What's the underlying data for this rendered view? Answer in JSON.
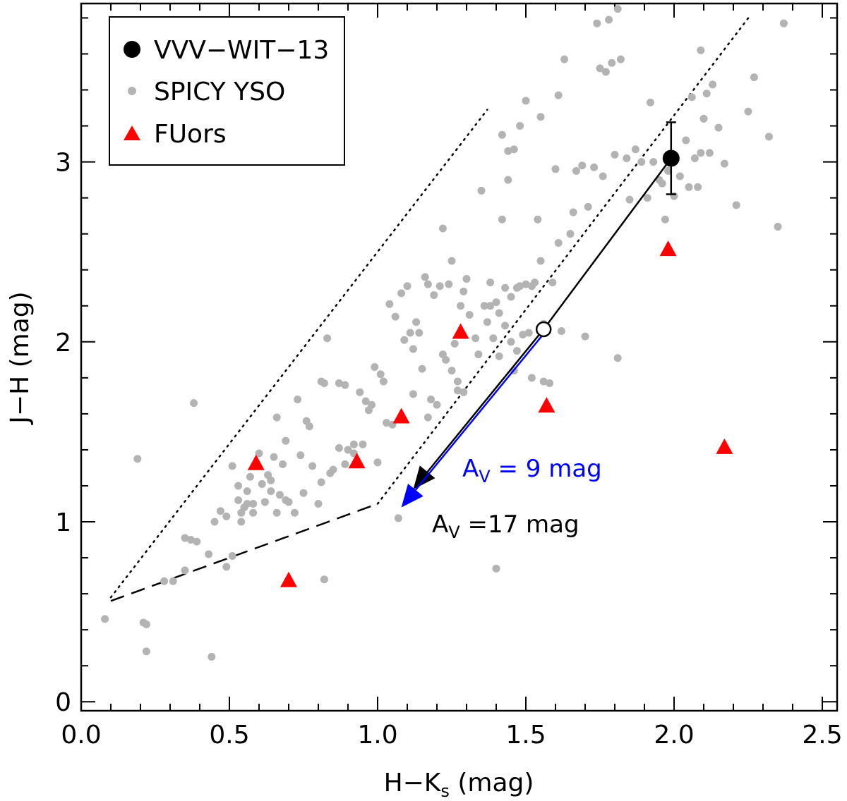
{
  "chart_data": {
    "type": "scatter",
    "xlabel": {
      "main": "H−K",
      "sub": "s",
      "unit": " (mag)"
    },
    "ylabel": "J−H  (mag)",
    "xlim": [
      0.0,
      2.55
    ],
    "ylim": [
      -0.05,
      3.88
    ],
    "xticks": [
      {
        "v": 0.0,
        "label": "0.0"
      },
      {
        "v": 0.5,
        "label": "0.5"
      },
      {
        "v": 1.0,
        "label": "1.0"
      },
      {
        "v": 1.5,
        "label": "1.5"
      },
      {
        "v": 2.0,
        "label": "2.0"
      },
      {
        "v": 2.5,
        "label": "2.5"
      }
    ],
    "yticks": [
      {
        "v": 0,
        "label": "0"
      },
      {
        "v": 1,
        "label": "1"
      },
      {
        "v": 2,
        "label": "2"
      },
      {
        "v": 3,
        "label": "3"
      }
    ],
    "xminor_step": 0.1,
    "yminor_step": 0.2,
    "legend": {
      "position": "top-left",
      "entries": [
        {
          "label": "VVV−WIT−13",
          "marker": "circle-large",
          "color": "#000000"
        },
        {
          "label": "SPICY YSO",
          "marker": "circle-small",
          "color": "#b3b3b3"
        },
        {
          "label": "FUors",
          "marker": "triangle",
          "color": "#ff0000"
        }
      ]
    },
    "series": [
      {
        "name": "SPICY YSO",
        "color": "#b3b3b3",
        "points": [
          [
            0.08,
            0.46
          ],
          [
            0.19,
            1.35
          ],
          [
            0.21,
            0.44
          ],
          [
            0.22,
            0.43
          ],
          [
            0.22,
            0.28
          ],
          [
            0.28,
            0.67
          ],
          [
            0.31,
            0.67
          ],
          [
            0.38,
            1.66
          ],
          [
            0.35,
            0.91
          ],
          [
            0.37,
            0.9
          ],
          [
            0.39,
            0.89
          ],
          [
            0.35,
            0.73
          ],
          [
            0.43,
            0.82
          ],
          [
            0.44,
            0.25
          ],
          [
            0.45,
            1.0
          ],
          [
            0.47,
            1.06
          ],
          [
            0.49,
            1.03
          ],
          [
            0.49,
            0.75
          ],
          [
            0.51,
            0.81
          ],
          [
            0.51,
            1.31
          ],
          [
            0.53,
            1.2
          ],
          [
            0.53,
            1.12
          ],
          [
            0.54,
            1.05
          ],
          [
            0.54,
            1.0
          ],
          [
            0.55,
            1.08
          ],
          [
            0.56,
            1.1
          ],
          [
            0.56,
            1.17
          ],
          [
            0.57,
            1.25
          ],
          [
            0.58,
            1.1
          ],
          [
            0.58,
            1.05
          ],
          [
            0.6,
            1.38
          ],
          [
            0.61,
            1.21
          ],
          [
            0.62,
            1.11
          ],
          [
            0.63,
            1.26
          ],
          [
            0.64,
            1.23
          ],
          [
            0.64,
            1.17
          ],
          [
            0.65,
            1.36
          ],
          [
            0.66,
            1.05
          ],
          [
            0.66,
            1.58
          ],
          [
            0.67,
            1.15
          ],
          [
            0.68,
            1.32
          ],
          [
            0.69,
            1.12
          ],
          [
            0.69,
            1.45
          ],
          [
            0.7,
            1.11
          ],
          [
            0.72,
            1.05
          ],
          [
            0.73,
            1.68
          ],
          [
            0.74,
            1.37
          ],
          [
            0.75,
            1.16
          ],
          [
            0.76,
            1.56
          ],
          [
            0.77,
            1.53
          ],
          [
            0.78,
            1.31
          ],
          [
            0.8,
            1.1
          ],
          [
            0.81,
            1.78
          ],
          [
            0.81,
            1.22
          ],
          [
            0.82,
            1.77
          ],
          [
            0.82,
            0.68
          ],
          [
            0.83,
            2.02
          ],
          [
            0.84,
            1.27
          ],
          [
            0.85,
            1.29
          ],
          [
            0.87,
            1.41
          ],
          [
            0.87,
            1.77
          ],
          [
            0.89,
            1.76
          ],
          [
            0.89,
            1.32
          ],
          [
            0.9,
            1.4
          ],
          [
            0.92,
            1.43
          ],
          [
            0.92,
            1.38
          ],
          [
            0.94,
            1.72
          ],
          [
            0.95,
            1.43
          ],
          [
            0.96,
            1.67
          ],
          [
            0.97,
            1.62
          ],
          [
            0.98,
            1.65
          ],
          [
            0.99,
            1.86
          ],
          [
            1.0,
            1.33
          ],
          [
            1.01,
            1.82
          ],
          [
            1.02,
            1.78
          ],
          [
            1.03,
            1.55
          ],
          [
            1.04,
            2.21
          ],
          [
            1.05,
            1.54
          ],
          [
            1.06,
            2.14
          ],
          [
            1.07,
            1.02
          ],
          [
            1.08,
            2.27
          ],
          [
            1.09,
            2.01
          ],
          [
            1.1,
            2.31
          ],
          [
            1.11,
            2.05
          ],
          [
            1.12,
            1.71
          ],
          [
            1.12,
            1.96
          ],
          [
            1.13,
            2.11
          ],
          [
            1.14,
            2.05
          ],
          [
            1.15,
            1.85
          ],
          [
            1.16,
            2.36
          ],
          [
            1.17,
            1.58
          ],
          [
            1.17,
            2.32
          ],
          [
            1.18,
            1.68
          ],
          [
            1.19,
            2.26
          ],
          [
            1.2,
            1.65
          ],
          [
            1.21,
            2.31
          ],
          [
            1.22,
            1.93
          ],
          [
            1.22,
            2.63
          ],
          [
            1.23,
            1.9
          ],
          [
            1.24,
            2.32
          ],
          [
            1.25,
            2.45
          ],
          [
            1.25,
            1.84
          ],
          [
            1.26,
            1.99
          ],
          [
            1.27,
            1.78
          ],
          [
            1.27,
            1.73
          ],
          [
            1.28,
            2.2
          ],
          [
            1.29,
            1.72
          ],
          [
            1.29,
            2.28
          ],
          [
            1.3,
            2.35
          ],
          [
            1.31,
            2.15
          ],
          [
            1.33,
            2.02
          ],
          [
            1.34,
            1.93
          ],
          [
            1.35,
            2.84
          ],
          [
            1.36,
            2.2
          ],
          [
            1.37,
            2.11
          ],
          [
            1.38,
            2.33
          ],
          [
            1.38,
            2.2
          ],
          [
            1.39,
            2.02
          ],
          [
            1.4,
            2.22
          ],
          [
            1.4,
            0.74
          ],
          [
            1.41,
            2.16
          ],
          [
            1.41,
            1.92
          ],
          [
            1.42,
            2.68
          ],
          [
            1.42,
            3.15
          ],
          [
            1.43,
            2.3
          ],
          [
            1.43,
            2.09
          ],
          [
            1.44,
            2.9
          ],
          [
            1.44,
            3.06
          ],
          [
            1.45,
            2.25
          ],
          [
            1.45,
            2.0
          ],
          [
            1.46,
            3.07
          ],
          [
            1.46,
            1.84
          ],
          [
            1.47,
            2.3
          ],
          [
            1.47,
            1.95
          ],
          [
            1.48,
            3.2
          ],
          [
            1.48,
            2.31
          ],
          [
            1.49,
            2.04
          ],
          [
            1.5,
            3.34
          ],
          [
            1.5,
            2.32
          ],
          [
            1.51,
            2.05
          ],
          [
            1.52,
            2.31
          ],
          [
            1.52,
            1.8
          ],
          [
            1.53,
            2.33
          ],
          [
            1.54,
            2.68
          ],
          [
            1.55,
            2.45
          ],
          [
            1.55,
            3.25
          ],
          [
            1.56,
            2.1
          ],
          [
            1.56,
            1.78
          ],
          [
            1.58,
            1.77
          ],
          [
            1.59,
            2.33
          ],
          [
            1.6,
            2.96
          ],
          [
            1.61,
            3.37
          ],
          [
            1.61,
            2.55
          ],
          [
            1.63,
            3.57
          ],
          [
            1.65,
            2.6
          ],
          [
            1.66,
            2.72
          ],
          [
            1.67,
            2.95
          ],
          [
            1.69,
            2.98
          ],
          [
            1.7,
            2.03
          ],
          [
            1.71,
            2.75
          ],
          [
            1.73,
            2.97
          ],
          [
            1.74,
            3.77
          ],
          [
            1.75,
            3.52
          ],
          [
            1.76,
            2.92
          ],
          [
            1.77,
            3.5
          ],
          [
            1.78,
            3.79
          ],
          [
            1.79,
            3.55
          ],
          [
            1.8,
            3.04
          ],
          [
            1.81,
            3.85
          ],
          [
            1.81,
            1.91
          ],
          [
            1.82,
            3.57
          ],
          [
            1.84,
            3.02
          ],
          [
            1.85,
            2.79
          ],
          [
            1.87,
            3.07
          ],
          [
            1.89,
            3.0
          ],
          [
            1.91,
            2.8
          ],
          [
            1.92,
            3.33
          ],
          [
            1.93,
            3.0
          ],
          [
            1.95,
            2.9
          ],
          [
            1.97,
            2.68
          ],
          [
            1.98,
            2.95
          ],
          [
            2.0,
            2.81
          ],
          [
            2.02,
            2.92
          ],
          [
            2.04,
            3.12
          ],
          [
            2.05,
            2.86
          ],
          [
            2.06,
            3.36
          ],
          [
            2.07,
            3.02
          ],
          [
            2.08,
            2.86
          ],
          [
            2.09,
            3.62
          ],
          [
            2.1,
            3.24
          ],
          [
            2.11,
            3.38
          ],
          [
            2.12,
            3.05
          ],
          [
            2.13,
            3.43
          ],
          [
            2.15,
            3.19
          ],
          [
            2.17,
            2.99
          ],
          [
            2.21,
            2.76
          ],
          [
            2.27,
            3.47
          ],
          [
            2.32,
            3.14
          ],
          [
            2.35,
            2.64
          ],
          [
            2.37,
            3.77
          ],
          [
            2.25,
            3.28
          ],
          [
            2.09,
            3.05
          ],
          [
            1.96,
            2.88
          ],
          [
            1.62,
            2.06
          ]
        ]
      },
      {
        "name": "FUors",
        "color": "#ff0000",
        "points": [
          [
            0.59,
            1.33
          ],
          [
            0.7,
            0.68
          ],
          [
            0.93,
            1.34
          ],
          [
            1.08,
            1.59
          ],
          [
            1.28,
            2.06
          ],
          [
            1.57,
            1.65
          ],
          [
            1.98,
            2.52
          ],
          [
            2.17,
            1.42
          ]
        ]
      },
      {
        "name": "VVV−WIT−13",
        "color": "#000000",
        "points": [
          [
            1.99,
            3.02
          ]
        ],
        "yerr": [
          0.2
        ]
      }
    ],
    "lines": [
      {
        "name": "upper-dotted",
        "style": "dotted",
        "points": [
          [
            0.1,
            0.58
          ],
          [
            1.37,
            3.29
          ]
        ]
      },
      {
        "name": "lower-dotted",
        "style": "dotted",
        "points": [
          [
            1.0,
            1.1
          ],
          [
            2.26,
            3.82
          ]
        ]
      },
      {
        "name": "dashed-locus",
        "style": "dashed",
        "points": [
          [
            0.1,
            0.56
          ],
          [
            1.0,
            1.1
          ]
        ]
      }
    ],
    "dereddening": {
      "start": [
        1.99,
        3.02
      ],
      "via": [
        1.56,
        2.07
      ],
      "black_end": [
        1.12,
        1.18
      ],
      "blue_end": [
        1.08,
        1.08
      ],
      "blue_label": {
        "prefix": "A",
        "sub": "V",
        "text": " =  9  mag",
        "color": "#0000ff"
      },
      "black_label": {
        "prefix": "A",
        "sub": "V",
        "text": " =17  mag",
        "color": "#000000"
      }
    }
  }
}
